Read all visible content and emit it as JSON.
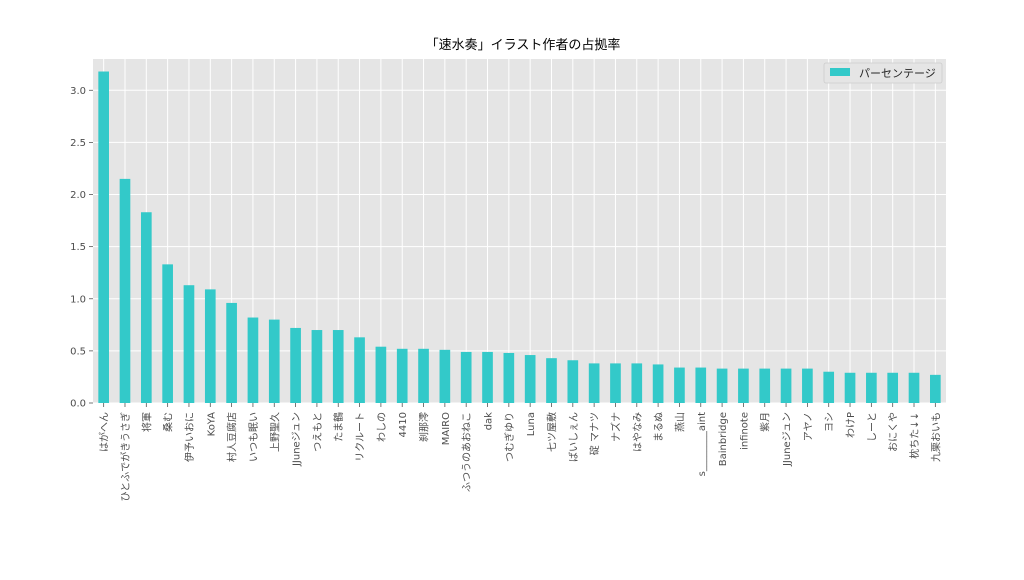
{
  "chart_data": {
    "type": "bar",
    "title": "「速水奏」イラスト作者の占拠率",
    "xlabel": "",
    "ylabel": "",
    "ylim": [
      0,
      3.3
    ],
    "yticks": [
      "0.0",
      "0.5",
      "1.0",
      "1.5",
      "2.0",
      "2.5",
      "3.0"
    ],
    "grid": true,
    "legend_position": "top-right",
    "colors": {
      "bar": "#33c9c9",
      "plot_bg": "#e5e5e5",
      "grid": "#ffffff",
      "text": "#4d4d4d",
      "title": "#000000"
    },
    "categories": [
      "はがへん",
      "ひとふでがきうさぎ",
      "将軍",
      "桑む",
      "伊予いおに",
      "KoYA",
      "村人豆腐店",
      "いつも眠い",
      "上野聖久",
      "JJuneジュン",
      "つえもと",
      "たま鶴",
      "リクルート",
      "わしの",
      "4410",
      "刹那澪",
      "MAIRO",
      "ふつうのあおねこ",
      "dak",
      "つむぎゆり",
      "Luna",
      "七ツ屋敷",
      "ばいしぇん",
      "碇 マナツ",
      "ナズナ",
      "はやなみ",
      "まるぬ",
      "燕山",
      "s________aint",
      "Bainbridge",
      "infinote",
      "紫月",
      "JJuneジュン",
      "アヤノ",
      "ヨシ",
      "わけP",
      "しーと",
      "おにくや",
      "枕ちた↓↓",
      "九栗おいも"
    ],
    "series": [
      {
        "name": "パーセンテージ",
        "values": [
          3.18,
          2.15,
          1.83,
          1.33,
          1.13,
          1.09,
          0.96,
          0.82,
          0.8,
          0.72,
          0.7,
          0.7,
          0.63,
          0.54,
          0.52,
          0.52,
          0.51,
          0.49,
          0.49,
          0.48,
          0.46,
          0.43,
          0.41,
          0.38,
          0.38,
          0.38,
          0.37,
          0.34,
          0.34,
          0.33,
          0.33,
          0.33,
          0.33,
          0.33,
          0.3,
          0.29,
          0.29,
          0.29,
          0.29,
          0.27
        ]
      }
    ]
  }
}
